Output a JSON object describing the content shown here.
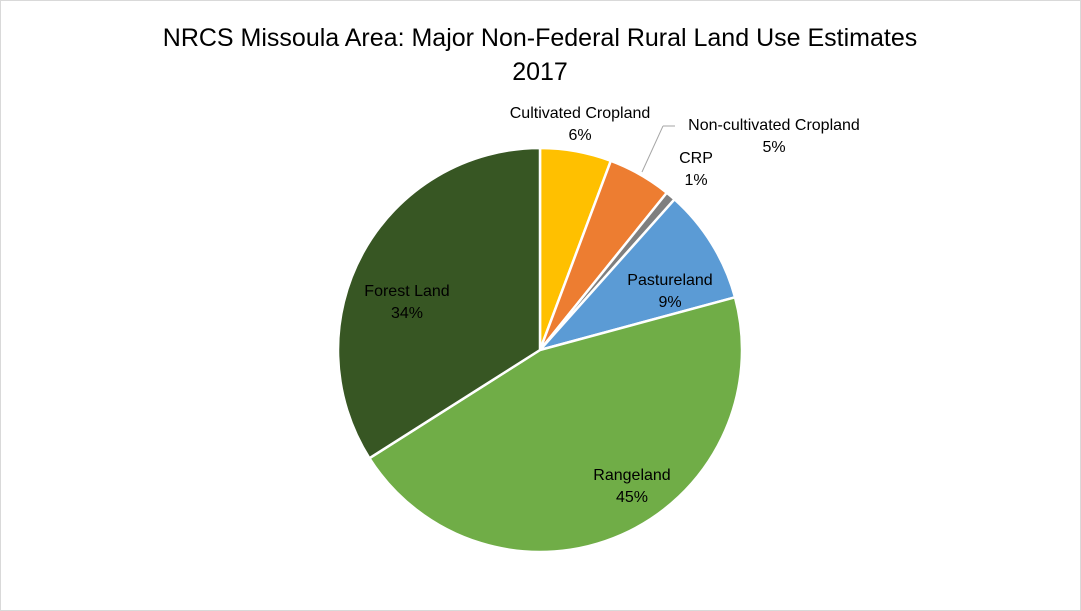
{
  "chart_data": {
    "type": "pie",
    "title": "NRCS Missoula Area: Major Non-Federal Rural Land Use Estimates",
    "subtitle": "2017",
    "slices": [
      {
        "name": "Cultivated Cropland",
        "label": "6%",
        "value": 5.7,
        "color": "#ffc000"
      },
      {
        "name": "Non-cultivated Cropland",
        "label": "5%",
        "value": 5.1,
        "color": "#ed7d31"
      },
      {
        "name": "CRP",
        "label": "1%",
        "value": 0.8,
        "color": "#7f7f7f"
      },
      {
        "name": "Pastureland",
        "label": "9%",
        "value": 9.2,
        "color": "#5b9bd5"
      },
      {
        "name": "Rangeland",
        "label": "45%",
        "value": 45.2,
        "color": "#70ad47"
      },
      {
        "name": "Forest Land",
        "label": "34%",
        "value": 34.0,
        "color": "#375623"
      }
    ]
  }
}
